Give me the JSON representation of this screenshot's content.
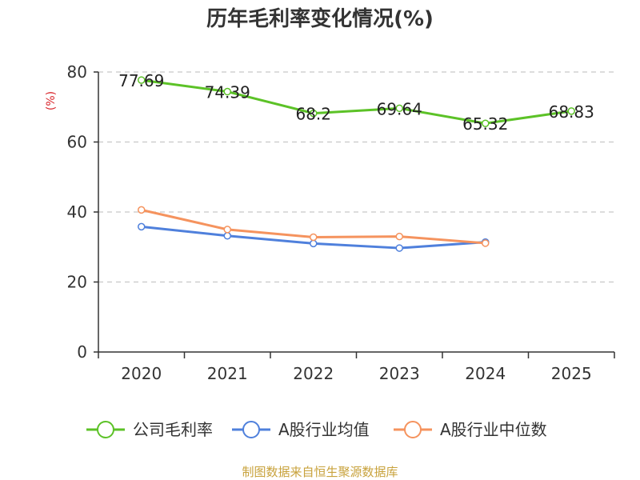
{
  "chart_data": {
    "type": "line",
    "title": "历年毛利率变化情况(%)",
    "ylabel": "(%)",
    "xlabel": "",
    "categories": [
      "2020",
      "2021",
      "2022",
      "2023",
      "2024",
      "2025"
    ],
    "ylim": [
      0,
      80
    ],
    "yticks": [
      0,
      20,
      40,
      60,
      80
    ],
    "grid": true,
    "legend_position": "bottom",
    "series": [
      {
        "name": "公司毛利率",
        "color": "#5cc227",
        "values": [
          77.69,
          74.39,
          68.2,
          69.64,
          65.32,
          68.83
        ],
        "labels": [
          "77.69",
          "74.39",
          "68.2",
          "69.64",
          "65.32",
          "68.83"
        ],
        "show_labels": true
      },
      {
        "name": "A股行业均值",
        "color": "#4f80dc",
        "values": [
          35.8,
          33.2,
          31.0,
          29.7,
          31.4,
          null
        ],
        "show_labels": false
      },
      {
        "name": "A股行业中位数",
        "color": "#f5935e",
        "values": [
          40.6,
          35.0,
          32.8,
          33.0,
          31.1,
          null
        ],
        "show_labels": false
      }
    ],
    "source": "制图数据来自恒生聚源数据库",
    "colors": {
      "axis": "#333333",
      "grid": "#c8c8c8",
      "ylabel": "#d9262c",
      "source": "#c8a23c",
      "title": "#333333"
    }
  }
}
